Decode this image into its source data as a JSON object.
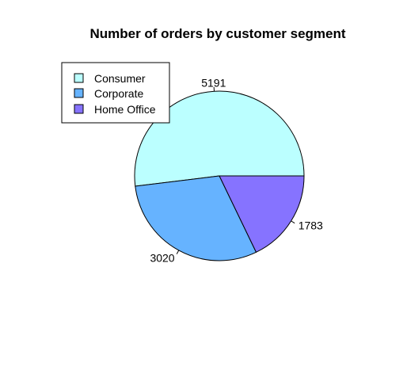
{
  "chart_data": {
    "type": "pie",
    "title": "Number of orders by customer segment",
    "categories": [
      "Consumer",
      "Corporate",
      "Home Office"
    ],
    "values": [
      5191,
      3020,
      1783
    ],
    "colors": [
      "#bbffff",
      "#66b3ff",
      "#8673ff"
    ],
    "labels": [
      "5191",
      "3020",
      "1783"
    ],
    "legend": {
      "placement": "top-left",
      "entries": [
        "Consumer",
        "Corporate",
        "Home Office"
      ]
    }
  }
}
